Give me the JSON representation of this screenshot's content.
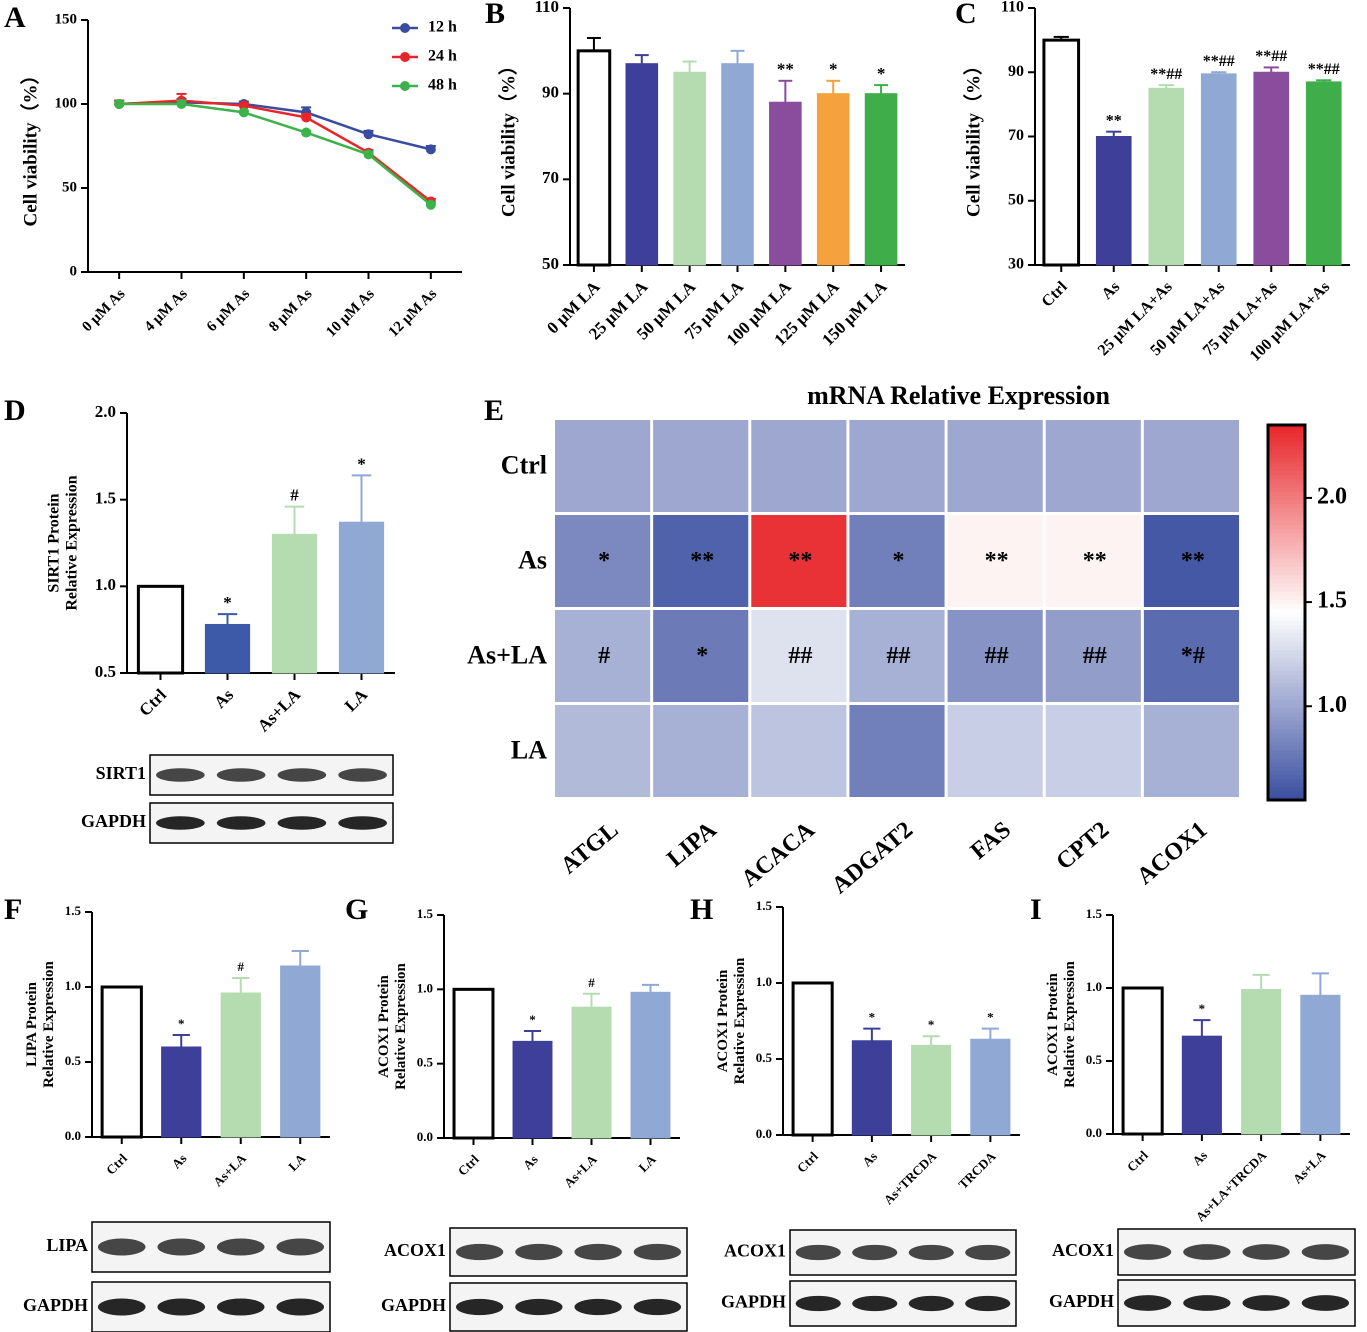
{
  "chart_data": [
    {
      "panel": "A",
      "type": "line",
      "ylabel": [
        "Cell viability（%）"
      ],
      "categories": [
        "0 μM As",
        "4 μM As",
        "6 μM As",
        "8 μM As",
        "10 μM As",
        "12 μM As"
      ],
      "series": [
        {
          "name": "12 h",
          "color": "#3a4ca0",
          "values": [
            100,
            101,
            100,
            95,
            82,
            73
          ],
          "errors": [
            2,
            2,
            1.5,
            3,
            2,
            2
          ]
        },
        {
          "name": "24 h",
          "color": "#e8262a",
          "values": [
            100,
            102,
            99,
            92,
            71,
            42
          ],
          "errors": [
            2,
            4,
            1.5,
            2,
            1.5,
            1.5
          ]
        },
        {
          "name": "48 h",
          "color": "#3cb34a",
          "values": [
            100,
            100,
            95,
            83,
            70,
            40
          ],
          "errors": [
            1.5,
            2,
            1,
            1,
            1.5,
            1.5
          ]
        }
      ],
      "ylim": [
        0,
        150
      ],
      "yticks": [
        0,
        50,
        100,
        150
      ],
      "legend": "upper right"
    },
    {
      "panel": "B",
      "type": "bar",
      "ylabel": [
        "Cell viability（%）"
      ],
      "categories": [
        "0 μM LA",
        "25 μM LA",
        "50 μM LA",
        "75 μM LA",
        "100 μM LA",
        "125 μM LA",
        "150 μM LA"
      ],
      "values": [
        100,
        97,
        95,
        97,
        88,
        90,
        90
      ],
      "errors": [
        3,
        2,
        2.5,
        3,
        5,
        3,
        2
      ],
      "colors": [
        "#ffffff",
        "#3d3f98",
        "#b5dcb0",
        "#8fa9d4",
        "#8a4d9e",
        "#f4a13e",
        "#3fae4a"
      ],
      "marks": [
        null,
        null,
        null,
        null,
        "**",
        "*",
        "*"
      ],
      "ylim": [
        50,
        110
      ],
      "yticks": [
        50,
        70,
        90,
        110
      ]
    },
    {
      "panel": "C",
      "type": "bar",
      "ylabel": [
        "Cell viability（%）"
      ],
      "categories": [
        "Ctrl",
        "As",
        "25 μM LA+As",
        "50 μM LA+As",
        "75 μM LA+As",
        "100 μM LA+As"
      ],
      "values": [
        100,
        70,
        85,
        89.5,
        90,
        87
      ],
      "errors": [
        1,
        1.5,
        1,
        0.5,
        1.5,
        0.5
      ],
      "colors": [
        "#ffffff",
        "#3d3f98",
        "#b5dcb0",
        "#8fa9d4",
        "#8a4d9e",
        "#3fae4a"
      ],
      "marks": [
        null,
        "**",
        "**##",
        "**##",
        "**##",
        "**##"
      ],
      "ylim": [
        30,
        110
      ],
      "yticks": [
        30,
        50,
        70,
        90,
        110
      ]
    },
    {
      "panel": "D",
      "type": "bar",
      "ylabel": [
        "SIRT1 Protein",
        "Relative Expression"
      ],
      "categories": [
        "Ctrl",
        "As",
        "As+LA",
        "LA"
      ],
      "values": [
        1.0,
        0.78,
        1.3,
        1.37
      ],
      "errors": [
        null,
        0.06,
        0.16,
        0.27
      ],
      "colors": [
        "#ffffff",
        "#3d5aa8",
        "#b5dcb0",
        "#8fa9d4"
      ],
      "marks": [
        null,
        "*",
        "#",
        "*"
      ],
      "ylim": [
        0.5,
        2.0
      ],
      "yticks": [
        0.5,
        {
          "value": 1.0,
          "label": "1.0"
        },
        1.5,
        {
          "value": 2.0,
          "label": "2.0"
        }
      ],
      "blots": [
        "SIRT1",
        "GAPDH"
      ]
    },
    {
      "panel": "E",
      "type": "heatmap",
      "title": "mRNA Relative Expression",
      "rows": [
        "Ctrl",
        "As",
        "As+LA",
        "LA"
      ],
      "columns": [
        "ATGL",
        "LIPA",
        "ACACA",
        "ADGAT2",
        "FAS",
        "CPT2",
        "ACOX1"
      ],
      "values": [
        [
          1.0,
          1.0,
          1.0,
          1.0,
          1.0,
          1.0,
          1.0
        ],
        [
          0.85,
          0.65,
          2.3,
          0.8,
          1.5,
          1.5,
          0.6
        ],
        [
          1.05,
          0.78,
          1.3,
          1.05,
          0.9,
          0.95,
          0.7
        ],
        [
          1.1,
          1.05,
          1.15,
          0.8,
          1.2,
          1.2,
          1.05
        ]
      ],
      "annotations": [
        [
          null,
          null,
          null,
          null,
          null,
          null,
          null
        ],
        [
          "*",
          "**",
          "**",
          "*",
          "**",
          "**",
          "**"
        ],
        [
          "#",
          "*",
          "##",
          "##",
          "##",
          "##",
          "*#"
        ],
        [
          null,
          null,
          null,
          null,
          null,
          null,
          null
        ]
      ],
      "colormap": [
        "#3a4ea0",
        "#ffffff",
        "#e8262a"
      ],
      "clim": [
        0.55,
        2.35
      ],
      "cticks": [
        {
          "value": 1.0,
          "label": "1.0"
        },
        1.5,
        {
          "value": 2.0,
          "label": "2.0"
        }
      ]
    },
    {
      "panel": "F",
      "type": "bar",
      "ylabel": [
        "LIPA Protein",
        "Relative Expression"
      ],
      "categories": [
        "Ctrl",
        "As",
        "As+LA",
        "LA"
      ],
      "values": [
        1.0,
        0.6,
        0.96,
        1.14
      ],
      "errors": [
        null,
        0.08,
        0.1,
        0.1
      ],
      "colors": [
        "#ffffff",
        "#3d3f98",
        "#b5dcb0",
        "#8fa9d4"
      ],
      "marks": [
        null,
        "*",
        "#",
        null
      ],
      "ylim": [
        0,
        1.5
      ],
      "yticks": [
        {
          "value": 0,
          "label": "0.0"
        },
        0.5,
        {
          "value": 1.0,
          "label": "1.0"
        },
        1.5
      ],
      "blots": [
        "LIPA",
        "GAPDH"
      ]
    },
    {
      "panel": "G",
      "type": "bar",
      "ylabel": [
        "ACOX1 Protein",
        "Relative Expression"
      ],
      "categories": [
        "Ctrl",
        "As",
        "As+LA",
        "LA"
      ],
      "values": [
        1.0,
        0.65,
        0.88,
        0.98
      ],
      "errors": [
        null,
        0.07,
        0.09,
        0.05
      ],
      "colors": [
        "#ffffff",
        "#3d3f98",
        "#b5dcb0",
        "#8fa9d4"
      ],
      "marks": [
        null,
        "*",
        "#",
        null
      ],
      "ylim": [
        0,
        1.5
      ],
      "yticks": [
        {
          "value": 0,
          "label": "0.0"
        },
        0.5,
        {
          "value": 1.0,
          "label": "1.0"
        },
        1.5
      ],
      "blots": [
        "ACOX1",
        "GAPDH"
      ]
    },
    {
      "panel": "H",
      "type": "bar",
      "ylabel": [
        "ACOX1 Protein",
        "Relative Expression"
      ],
      "categories": [
        "Ctrl",
        "As",
        "As+TRCDA",
        "TRCDA"
      ],
      "values": [
        1.0,
        0.62,
        0.59,
        0.63
      ],
      "errors": [
        null,
        0.08,
        0.06,
        0.07
      ],
      "colors": [
        "#ffffff",
        "#3d3f98",
        "#b5dcb0",
        "#8fa9d4"
      ],
      "marks": [
        null,
        "*",
        "*",
        "*"
      ],
      "ylim": [
        0,
        1.5
      ],
      "yticks": [
        {
          "value": 0,
          "label": "0.0"
        },
        0.5,
        {
          "value": 1.0,
          "label": "1.0"
        },
        1.5
      ],
      "blots": [
        "ACOX1",
        "GAPDH"
      ]
    },
    {
      "panel": "I",
      "type": "bar",
      "ylabel": [
        "ACOX1 Protein",
        "Relative Expression"
      ],
      "categories": [
        "Ctrl",
        "As",
        "As+LA+TRCDA",
        "As+LA"
      ],
      "values": [
        1.0,
        0.67,
        0.99,
        0.95
      ],
      "errors": [
        null,
        0.11,
        0.1,
        0.15
      ],
      "colors": [
        "#ffffff",
        "#3d3f98",
        "#b5dcb0",
        "#8fa9d4"
      ],
      "marks": [
        null,
        "*",
        null,
        null
      ],
      "ylim": [
        0,
        1.5
      ],
      "yticks": [
        {
          "value": 0,
          "label": "0.0"
        },
        0.5,
        {
          "value": 1.0,
          "label": "1.0"
        },
        1.5
      ],
      "blots": [
        "ACOX1",
        "GAPDH"
      ]
    }
  ]
}
